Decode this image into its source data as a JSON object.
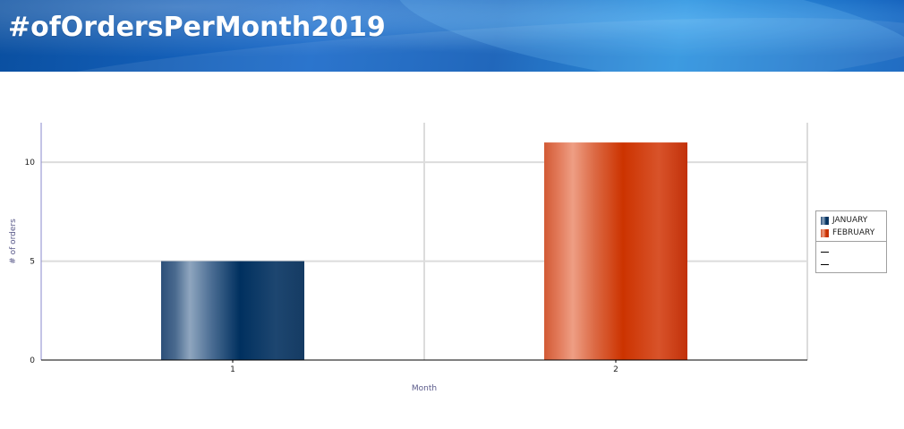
{
  "page": {
    "title": "#ofOrdersPerMonth2019"
  },
  "colors": {
    "january": "#0f3a6b",
    "february": "#cc3300",
    "grid": "#dddddd",
    "axis": "#8a8acc"
  },
  "chart_data": {
    "type": "bar",
    "title": "#ofOrdersPerMonth2019",
    "xlabel": "Month",
    "ylabel": "# of orders",
    "categories": [
      "1",
      "2"
    ],
    "series": [
      {
        "name": "JANUARY",
        "values": [
          5,
          null
        ]
      },
      {
        "name": "FEBRUARY",
        "values": [
          null,
          11
        ]
      }
    ],
    "ylim": [
      0,
      12
    ],
    "yticks": [
      0,
      5,
      10
    ],
    "grid": true,
    "legend": {
      "position": "right",
      "entries": [
        "JANUARY",
        "FEBRUARY"
      ]
    }
  }
}
